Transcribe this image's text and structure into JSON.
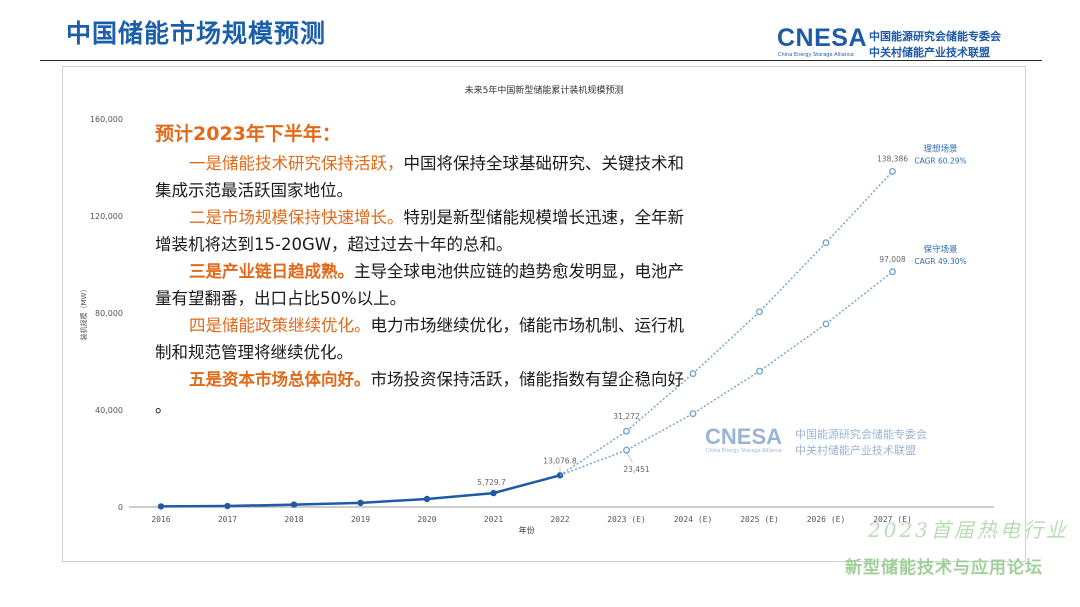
{
  "slide": {
    "title": "中国储能市场规模预测"
  },
  "logo": {
    "mark": "CNESA",
    "subtitle": "China Energy Storage Alliance",
    "line1": "中国能源研究会储能专委会",
    "line2": "中关村储能产业技术联盟"
  },
  "chart_data": {
    "type": "line",
    "title": "未来5年中国新型储能累计装机规模预测",
    "xlabel": "年份",
    "ylabel": "装机规模（MW）",
    "categories": [
      "2016",
      "2017",
      "2018",
      "2019",
      "2020",
      "2021",
      "2022",
      "2023 (E)",
      "2024 (E)",
      "2025 (E)",
      "2026 (E)",
      "2027 (E)"
    ],
    "ylim": [
      0,
      160000
    ],
    "yticks": [
      "0",
      "40,000",
      "80,000",
      "120,000",
      "160,000"
    ],
    "grid": false,
    "historical": {
      "values": [
        250,
        400,
        1000,
        1700,
        3300,
        5729.7,
        13076.8
      ]
    },
    "series": [
      {
        "name": "理想场景",
        "cagr": "CAGR 60.29%",
        "values": [
          null,
          null,
          null,
          null,
          null,
          null,
          13076.8,
          31272,
          55000,
          80500,
          109000,
          138386
        ]
      },
      {
        "name": "保守场景",
        "cagr": "CAGR 49.30%",
        "values": [
          null,
          null,
          null,
          null,
          null,
          null,
          13076.8,
          23451,
          38500,
          56000,
          75500,
          97008
        ]
      }
    ],
    "data_labels": [
      {
        "text": "5,729.7",
        "x": "2021",
        "y": 5729.7
      },
      {
        "text": "13,076.8",
        "x": "2022",
        "y": 13076.8
      },
      {
        "text": "31,272",
        "x": "2023 (E)",
        "y": 31272
      },
      {
        "text": "23,451",
        "x": "2023 (E)",
        "y": 23451
      },
      {
        "text": "138,386",
        "x": "2027 (E)",
        "y": 138386
      },
      {
        "text": "97,008",
        "x": "2027 (E)",
        "y": 97008
      }
    ],
    "colors": {
      "historical": "#1f5aa6",
      "forecast": "#6ea3cf",
      "label_blue": "#2e6db4",
      "axis_text": "#555555"
    }
  },
  "overlay": {
    "heading": "预计2023年下半年：",
    "points": [
      {
        "lead": "一是储能技术研究保持活跃，",
        "text": "中国将保持全球基础研究、关键技术和集成示范最活跃国家地位。"
      },
      {
        "lead": "二是市场规模保持快速增长。",
        "text": "特别是新型储能规模增长迅速，全年新增装机将达到15-20GW，超过过去十年的总和。"
      },
      {
        "lead": "三是产业链日趋成熟。",
        "text": "主导全球电池供应链的趋势愈发明显，电池产量有望翻番，出口占比50%以上。"
      },
      {
        "lead": "四是储能政策继续优化。",
        "text": "电力市场继续优化，储能市场机制、运行机制和规范管理将继续优化。"
      },
      {
        "lead": "五是资本市场总体向好。",
        "text": "市场投资保持活跃，储能指数有望企稳向好 。"
      }
    ]
  },
  "watermark": {
    "mark": "CNESA",
    "subtitle": "China Energy Storage Alliance",
    "line1": "中国能源研究会储能专委会",
    "line2": "中关村储能产业技术联盟"
  },
  "forum": {
    "line1": "2023首届热电行业",
    "line2": "新型储能技术与应用论坛"
  }
}
